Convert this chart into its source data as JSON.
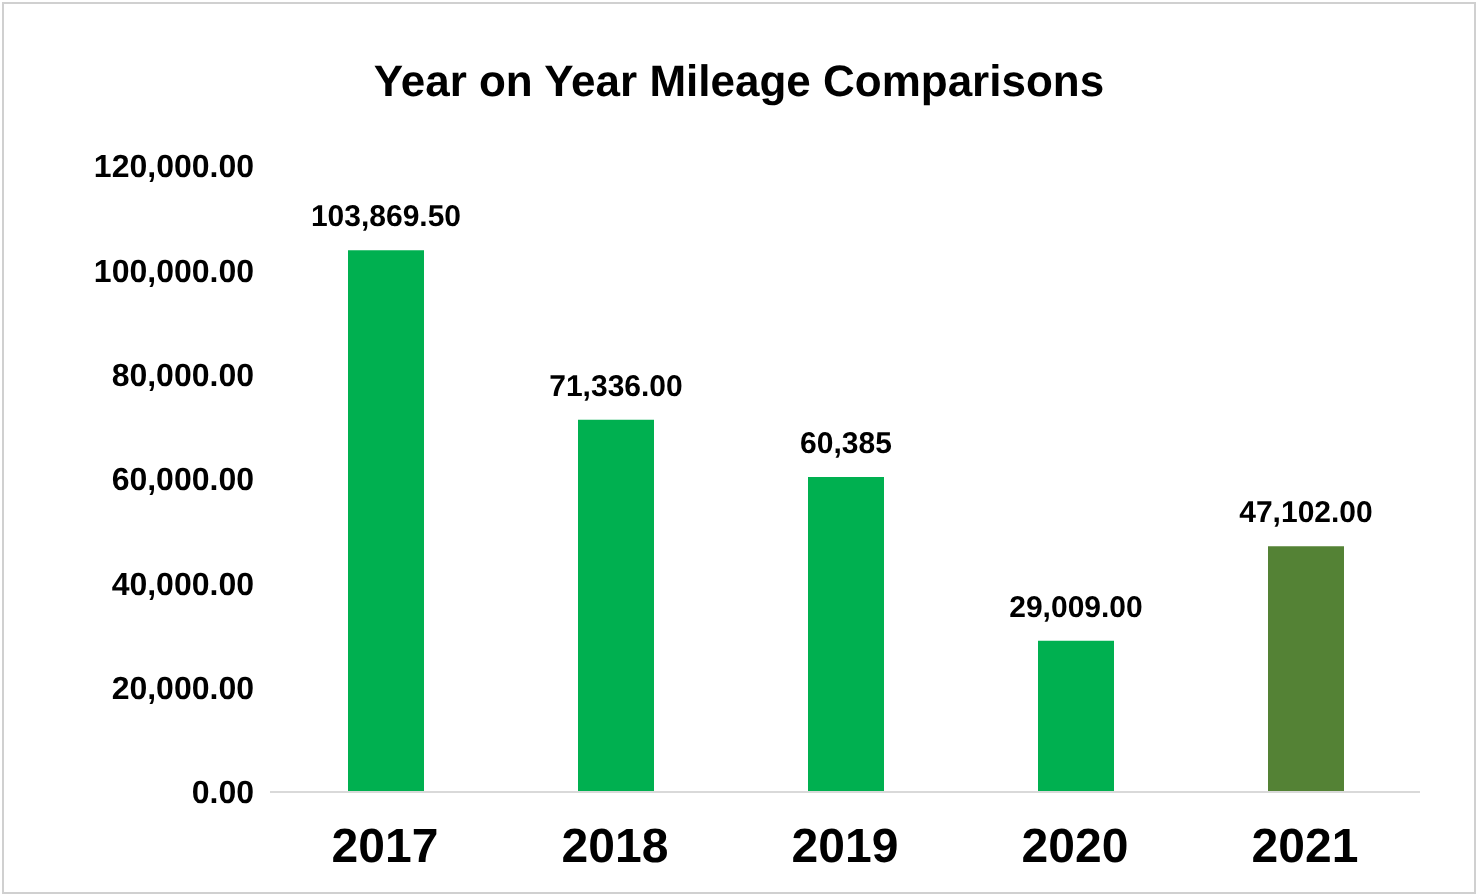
{
  "chart_data": {
    "type": "bar",
    "title": "Year on Year Mileage Comparisons",
    "categories": [
      "2017",
      "2018",
      "2019",
      "2020",
      "2021"
    ],
    "values": [
      103869.5,
      71336,
      60385,
      29009,
      47102
    ],
    "colors": [
      "#00b050",
      "#00b050",
      "#00b050",
      "#00b050",
      "#548235"
    ],
    "value_labels": [
      "103,869.50",
      "71,336.00",
      "60,385",
      "29,009.00",
      "47,102.00"
    ],
    "ylim": [
      0,
      120000
    ],
    "yticks": [
      {
        "value": 0,
        "label": "0.00"
      },
      {
        "value": 20000,
        "label": "20,000.00"
      },
      {
        "value": 40000,
        "label": "40,000.00"
      },
      {
        "value": 60000,
        "label": "60,000.00"
      },
      {
        "value": 80000,
        "label": "80,000.00"
      },
      {
        "value": 100000,
        "label": "100,000.00"
      },
      {
        "value": 120000,
        "label": "120,000.00"
      }
    ],
    "grid": false,
    "legend": false
  }
}
